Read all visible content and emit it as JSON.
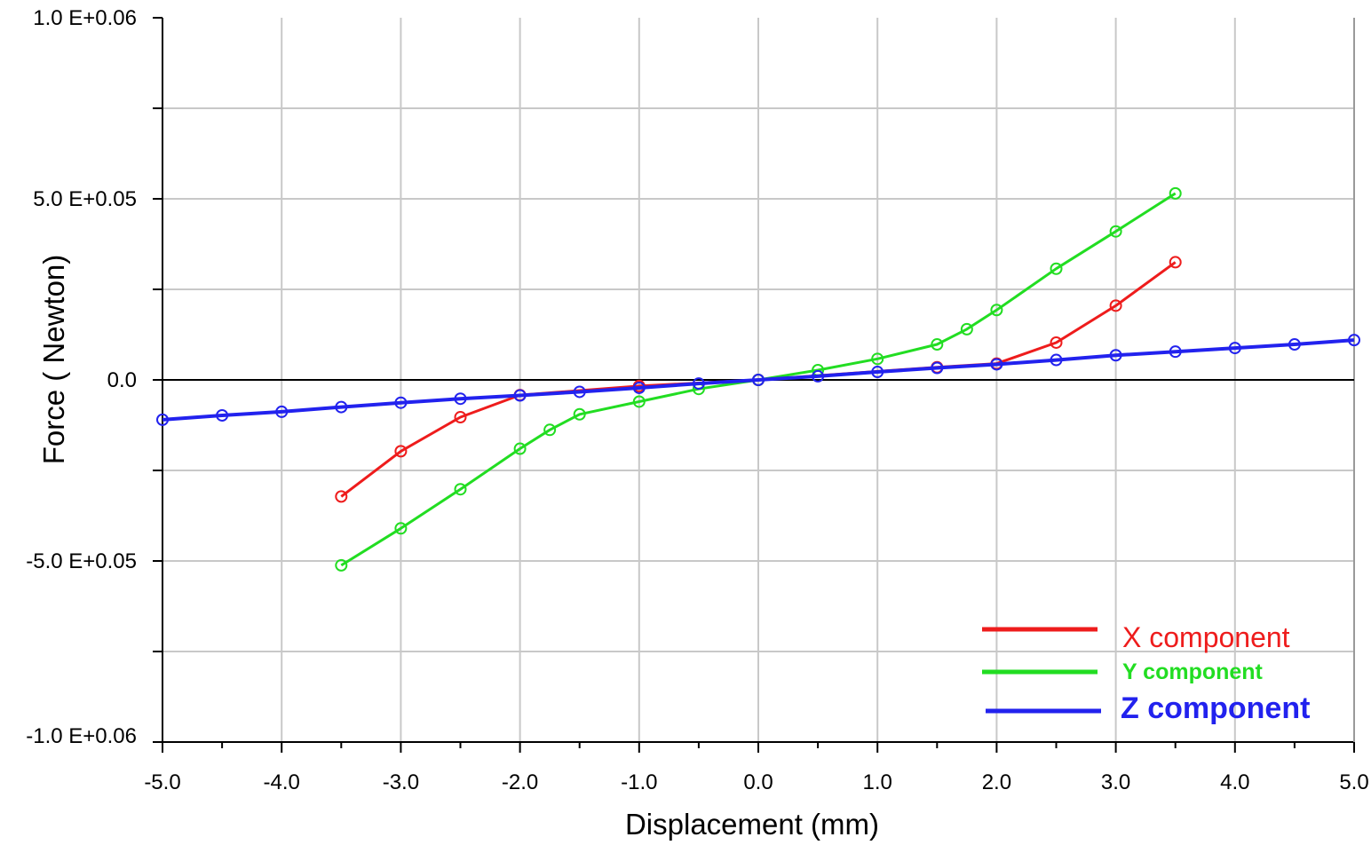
{
  "chart_data": {
    "type": "line",
    "xlabel": "Displacement (mm)",
    "ylabel": "Force ( Newton)",
    "xlim": [
      -5.0,
      5.0
    ],
    "ylim": [
      -1000000,
      1000000
    ],
    "x_ticks": [
      -5,
      -4,
      -3,
      -2,
      -1,
      0,
      1,
      2,
      3,
      4,
      5
    ],
    "x_tick_labels": [
      "-5.0",
      "-4.0",
      "-3.0",
      "-2.0",
      "-1.0",
      "0.0",
      "1.0",
      "2.0",
      "3.0",
      "4.0",
      "5.0"
    ],
    "y_ticks": [
      1000000,
      500000,
      0,
      -500000,
      -1000000
    ],
    "y_tick_labels": [
      "1.0 E+0.06",
      "5.0 E+0.05",
      "0.0",
      "-5.0 E+0.05",
      "-1.0 E+0.06"
    ],
    "grid": true,
    "legend_position": "bottom-right",
    "series": [
      {
        "name": "X component",
        "color": "#ee1c1c",
        "marker": "circle",
        "x": [
          -3.5,
          -3.0,
          -2.5,
          -2.0,
          -1.0,
          0.0,
          1.5,
          2.0,
          2.5,
          3.0,
          3.5
        ],
        "y": [
          -322000,
          -197000,
          -103000,
          -42000,
          -17000,
          0,
          35000,
          45000,
          103000,
          205000,
          325000
        ]
      },
      {
        "name": "Y component",
        "color": "#22dd22",
        "marker": "circle",
        "x": [
          -3.5,
          -3.0,
          -2.5,
          -2.0,
          -1.75,
          -1.5,
          -1.0,
          -0.5,
          0.0,
          0.5,
          1.0,
          1.5,
          1.75,
          2.0,
          2.5,
          3.0,
          3.5
        ],
        "y": [
          -512000,
          -410000,
          -302000,
          -190000,
          -138000,
          -95000,
          -60000,
          -25000,
          0,
          27000,
          58000,
          98000,
          140000,
          193000,
          307000,
          410000,
          515000
        ]
      },
      {
        "name": "Z component",
        "color": "#2222ee",
        "marker": "circle",
        "x": [
          -5.0,
          -4.5,
          -4.0,
          -3.5,
          -3.0,
          -2.5,
          -2.0,
          -1.5,
          -1.0,
          -0.5,
          0.0,
          0.5,
          1.0,
          1.5,
          2.0,
          2.5,
          3.0,
          3.5,
          4.0,
          4.5,
          5.0
        ],
        "y": [
          -110000,
          -98000,
          -88000,
          -75000,
          -63000,
          -52000,
          -43000,
          -33000,
          -22000,
          -10000,
          0,
          10000,
          22000,
          33000,
          43000,
          55000,
          68000,
          78000,
          88000,
          98000,
          110000
        ]
      }
    ]
  }
}
